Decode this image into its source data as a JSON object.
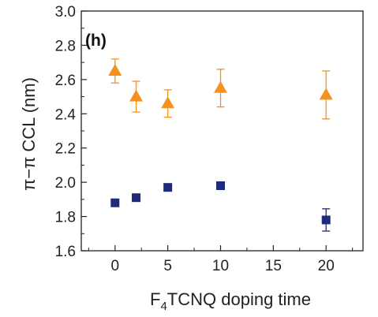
{
  "chart_data": {
    "type": "scatter",
    "panel_label": "(h)",
    "xlabel": {
      "prefix": "F",
      "subscript": "4",
      "suffix": "TCNQ doping time"
    },
    "ylabel": "π−π CCL (nm)",
    "xlim": [
      -3.2,
      23.5
    ],
    "ylim": [
      1.6,
      3.0
    ],
    "xticks": [
      0,
      5,
      10,
      15,
      20
    ],
    "xtick_labels": [
      "0",
      "5",
      "10",
      "15",
      "20"
    ],
    "yticks": [
      1.6,
      1.8,
      2.0,
      2.2,
      2.4,
      2.6,
      2.8,
      3.0
    ],
    "ytick_labels": [
      "1.6",
      "1.8",
      "2.0",
      "2.2",
      "2.4",
      "2.6",
      "2.8",
      "3.0"
    ],
    "grid": false,
    "legend": "none",
    "series": [
      {
        "marker": "triangle",
        "color": "#f5921e",
        "x": [
          0,
          2,
          5,
          10,
          20
        ],
        "y": [
          2.65,
          2.5,
          2.46,
          2.55,
          2.51
        ],
        "err": [
          0.07,
          0.09,
          0.08,
          0.11,
          0.14
        ]
      },
      {
        "marker": "square",
        "color": "#1f2a7a",
        "x": [
          0,
          2,
          5,
          10,
          20
        ],
        "y": [
          1.88,
          1.91,
          1.97,
          1.98,
          1.78
        ],
        "err": [
          0.0,
          0.0,
          0.02,
          0.0,
          0.065
        ]
      }
    ]
  }
}
